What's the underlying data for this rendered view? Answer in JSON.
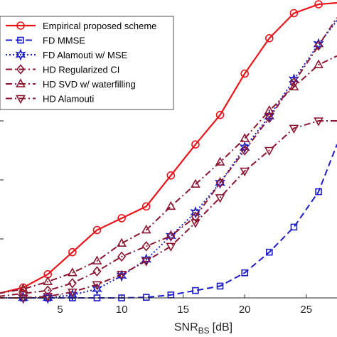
{
  "chart_data": {
    "type": "line",
    "xlabel": "SNR",
    "xlabel_sub": "BS",
    "xlabel_unit": "[dB]",
    "xlim": [
      0,
      27.5
    ],
    "ylim": [
      0,
      1
    ],
    "xticks": [
      5,
      10,
      15,
      20,
      25
    ],
    "grid": false,
    "legend_position": "top-left",
    "series": [
      {
        "name": "Empirical proposed scheme",
        "color": "#e8151b",
        "dash": "solid",
        "marker": "circle",
        "x": [
          0,
          2,
          4,
          6,
          8,
          10,
          12,
          14,
          16,
          18,
          20,
          22,
          24,
          26,
          27.5
        ],
        "y": [
          0.015,
          0.035,
          0.08,
          0.155,
          0.23,
          0.27,
          0.31,
          0.415,
          0.52,
          0.62,
          0.76,
          0.88,
          0.965,
          0.995,
          1.0
        ]
      },
      {
        "name": "FD MMSE",
        "color": "#1c1cc8",
        "dash": "dashed",
        "marker": "square",
        "x": [
          0,
          2,
          4,
          6,
          8,
          10,
          12,
          14,
          16,
          18,
          20,
          22,
          24,
          26,
          27.5
        ],
        "y": [
          0.0,
          0.0,
          0.0,
          0.0,
          0.0,
          0.0,
          0.002,
          0.01,
          0.025,
          0.04,
          0.085,
          0.155,
          0.24,
          0.36,
          0.52
        ]
      },
      {
        "name": "FD Alamouti w/ MSE",
        "color": "#1c1cc8",
        "dash": "dotted",
        "marker": "star",
        "x": [
          0,
          2,
          4,
          6,
          8,
          10,
          12,
          14,
          16,
          18,
          20,
          22,
          24,
          26,
          27.5
        ],
        "y": [
          0.0,
          0.0,
          0.0,
          0.01,
          0.03,
          0.075,
          0.13,
          0.21,
          0.29,
          0.39,
          0.51,
          0.615,
          0.74,
          0.86,
          0.94
        ]
      },
      {
        "name": "HD Regularized CI",
        "color": "#8b1530",
        "dash": "dashdot",
        "marker": "diamond",
        "x": [
          0,
          2,
          4,
          6,
          8,
          10,
          12,
          14,
          16,
          18,
          20,
          22,
          24,
          26,
          27.5
        ],
        "y": [
          0.005,
          0.015,
          0.025,
          0.05,
          0.09,
          0.14,
          0.175,
          0.21,
          0.275,
          0.39,
          0.5,
          0.61,
          0.73,
          0.855,
          0.95
        ]
      },
      {
        "name": "HD SVD w/ waterfilling",
        "color": "#8b1530",
        "dash": "dashdot",
        "marker": "triangle-up",
        "x": [
          0,
          2,
          4,
          6,
          8,
          10,
          12,
          14,
          16,
          18,
          20,
          22,
          24,
          26,
          27.5
        ],
        "y": [
          0.015,
          0.03,
          0.055,
          0.085,
          0.125,
          0.185,
          0.23,
          0.31,
          0.385,
          0.46,
          0.54,
          0.635,
          0.715,
          0.79,
          0.82
        ]
      },
      {
        "name": "HD Alamouti",
        "color": "#8b1530",
        "dash": "dashdot",
        "marker": "triangle-down",
        "x": [
          0,
          2,
          4,
          6,
          8,
          10,
          12,
          14,
          16,
          18,
          20,
          22,
          24,
          26,
          27.5
        ],
        "y": [
          0.0,
          0.0,
          0.005,
          0.02,
          0.045,
          0.08,
          0.125,
          0.175,
          0.255,
          0.34,
          0.43,
          0.5,
          0.575,
          0.6,
          0.6
        ]
      }
    ]
  }
}
